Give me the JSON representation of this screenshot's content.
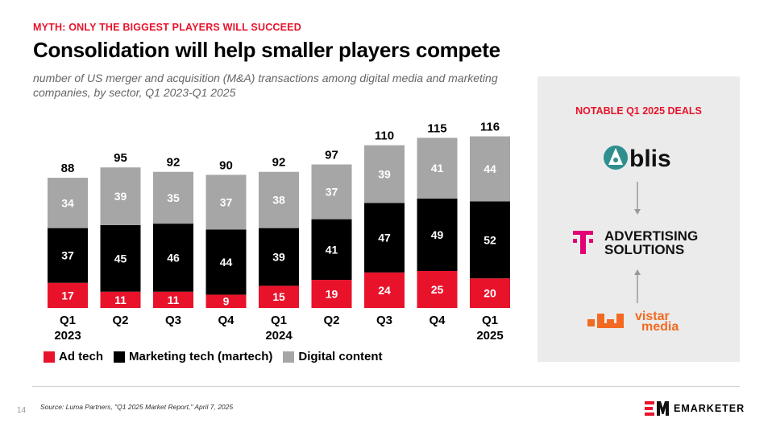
{
  "header": {
    "kicker": "MYTH: ONLY THE BIGGEST PLAYERS WILL SUCCEED",
    "title": "Consolidation will help smaller players compete",
    "subtitle": "number of US merger and acquisition (M&A) transactions among digital media and marketing companies, by sector, Q1 2023-Q1 2025"
  },
  "colors": {
    "ad_tech": "#e8132b",
    "martech": "#000000",
    "digital_content": "#a6a6a6",
    "accent": "#e8132b",
    "panel_bg": "#ebebeb"
  },
  "chart_data": {
    "type": "bar",
    "stacked": true,
    "categories": [
      [
        "Q1",
        "2023"
      ],
      [
        "Q2"
      ],
      [
        "Q3"
      ],
      [
        "Q4"
      ],
      [
        "Q1",
        "2024"
      ],
      [
        "Q2"
      ],
      [
        "Q3"
      ],
      [
        "Q4"
      ],
      [
        "Q1",
        "2025"
      ]
    ],
    "series": [
      {
        "name": "Ad tech",
        "values": [
          17,
          11,
          11,
          9,
          15,
          19,
          24,
          25,
          20
        ]
      },
      {
        "name": "Marketing tech (martech)",
        "values": [
          37,
          45,
          46,
          44,
          39,
          41,
          47,
          49,
          52
        ]
      },
      {
        "name": "Digital content",
        "values": [
          34,
          39,
          35,
          37,
          38,
          37,
          39,
          41,
          44
        ]
      }
    ],
    "totals": [
      88,
      95,
      92,
      90,
      92,
      97,
      110,
      115,
      116
    ],
    "ylim": [
      0,
      125
    ],
    "grid": false,
    "legend": "bottom"
  },
  "deals": {
    "title": "NOTABLE Q1 2025 DEALS",
    "companies": [
      {
        "name": "blis",
        "icon": "blis-logo-icon"
      },
      {
        "name_line1": "ADVERTISING",
        "name_line2": "SOLUTIONS",
        "icon": "telekom-t-logo-icon"
      },
      {
        "name_line1": "vistar",
        "name_line2": "media",
        "icon": "vistar-media-logo-icon"
      }
    ]
  },
  "footer": {
    "page_number": "14",
    "source": "Source: Luma Partners, \"Q1 2025 Market Report,\" April 7, 2025",
    "brand": "EMARKETER"
  }
}
